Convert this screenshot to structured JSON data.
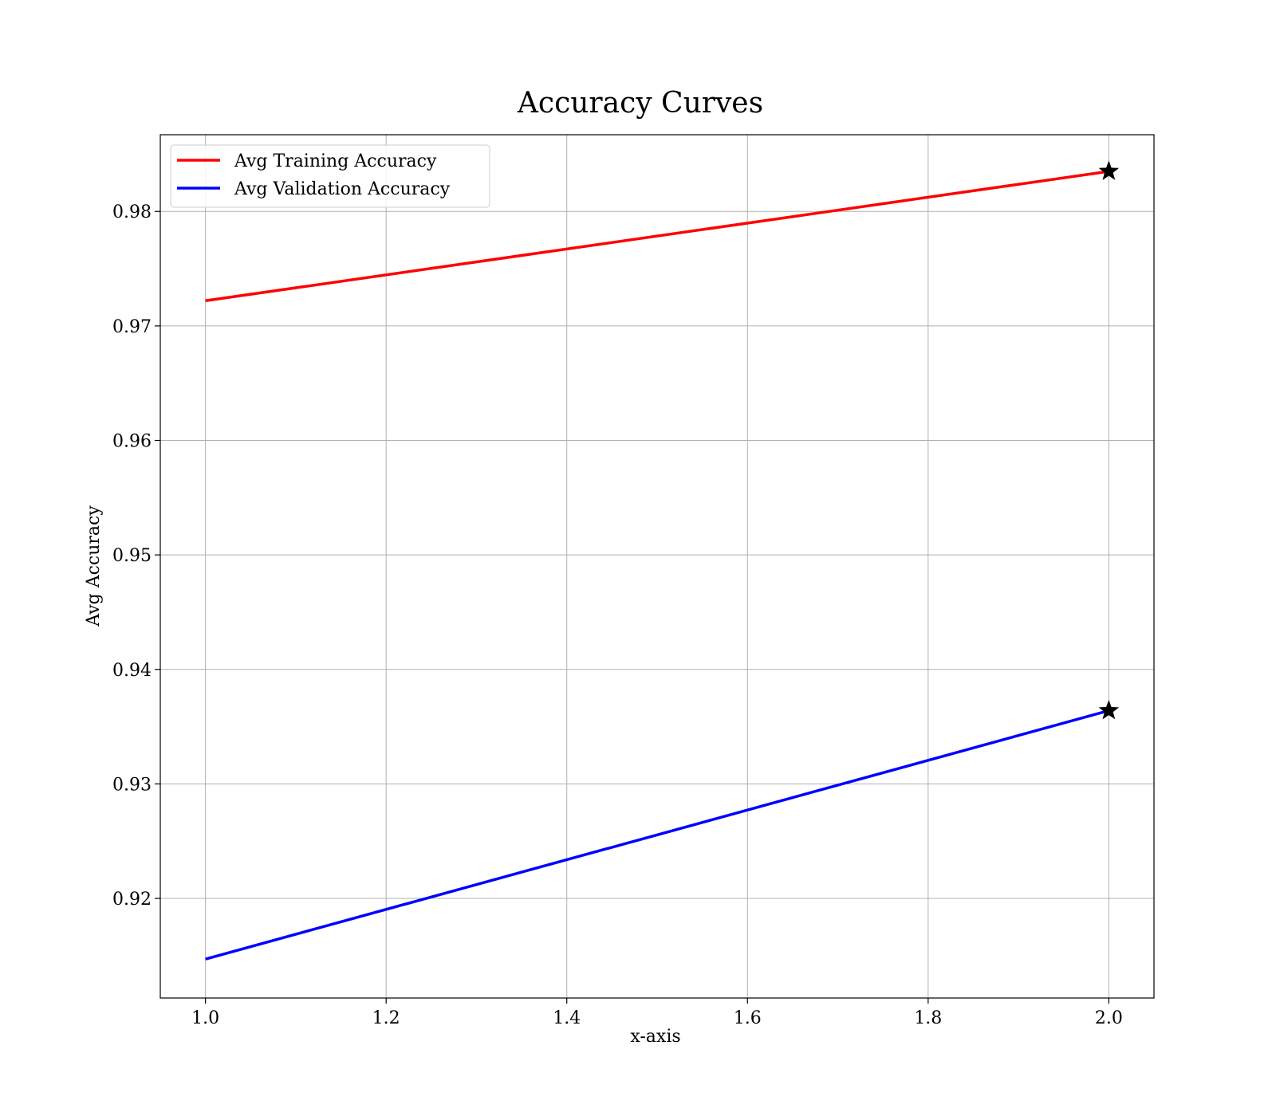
{
  "chart_data": {
    "type": "line",
    "title": "Accuracy Curves",
    "xlabel": "x-axis",
    "ylabel": "Avg Accuracy",
    "x": [
      1.0,
      2.0
    ],
    "xlim": [
      0.95,
      2.05
    ],
    "ylim": [
      0.9113,
      0.9867
    ],
    "xticks": [
      1.0,
      1.2,
      1.4,
      1.6,
      1.8,
      2.0
    ],
    "xtick_labels": [
      "1.0",
      "1.2",
      "1.4",
      "1.6",
      "1.8",
      "2.0"
    ],
    "yticks": [
      0.92,
      0.93,
      0.94,
      0.95,
      0.96,
      0.97,
      0.98
    ],
    "ytick_labels": [
      "0.92",
      "0.93",
      "0.94",
      "0.95",
      "0.96",
      "0.97",
      "0.98"
    ],
    "grid": true,
    "legend_position": "top-left",
    "series": [
      {
        "name": "Avg Training Accuracy",
        "values": [
          0.9722,
          0.9835
        ],
        "color": "#ff0000",
        "best_marker": "star",
        "best_index": 1
      },
      {
        "name": "Avg Validation Accuracy",
        "values": [
          0.9147,
          0.9364
        ],
        "color": "#0000ff",
        "best_marker": "star",
        "best_index": 1
      }
    ]
  }
}
